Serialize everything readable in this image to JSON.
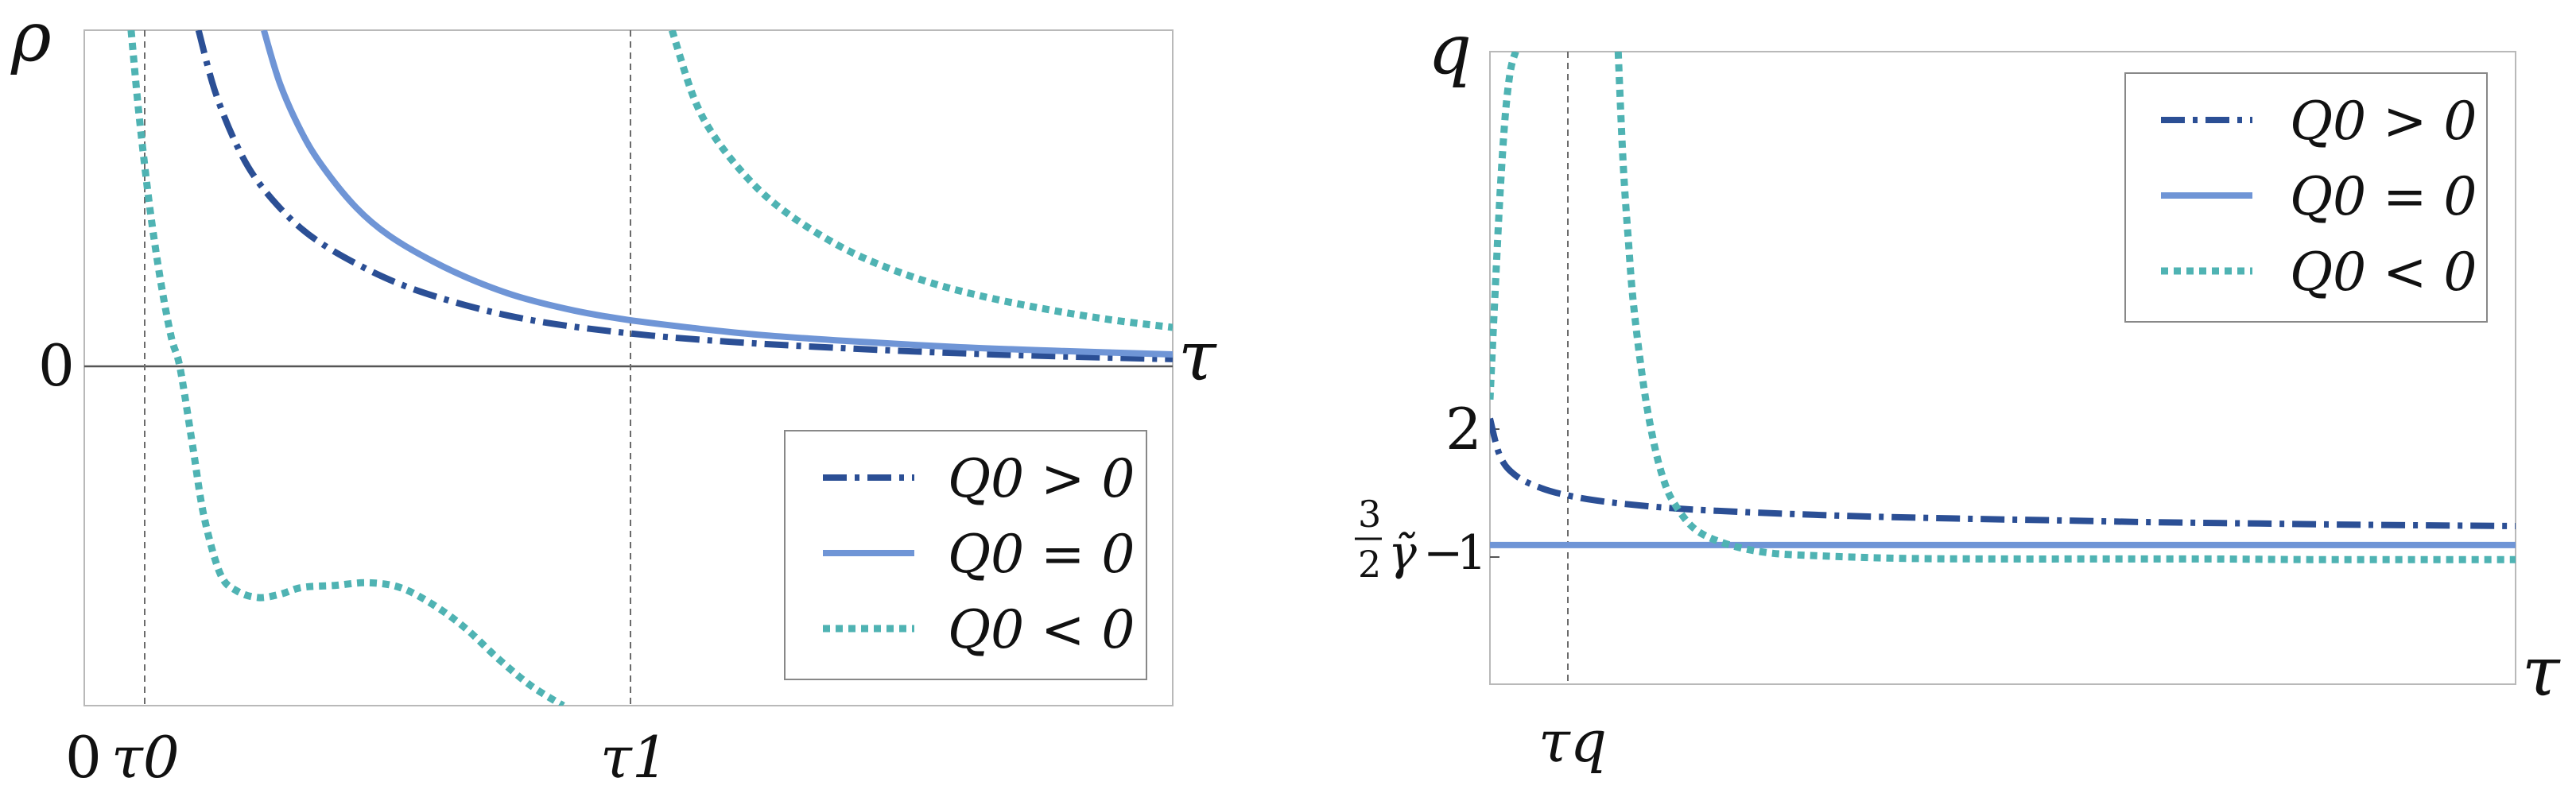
{
  "colors": {
    "dashdot": "#2b4f95",
    "solid": "#6f95d6",
    "dotted": "#4fb3b3",
    "frame": "#b9b9b9",
    "axis": "#555555",
    "guide": "#6b6b6b"
  },
  "chart_data": [
    {
      "type": "line",
      "title": "",
      "ylabel": "ρ",
      "xlabel": "τ",
      "ytick_labels": [
        "0"
      ],
      "xtick_labels": [
        "0",
        "τ0",
        "τ1"
      ],
      "xlim": [
        0,
        1
      ],
      "ylim": [
        -0.5,
        0.5
      ],
      "grid": false,
      "legend_placement": "bottom-right",
      "annotations": [
        "τ0",
        "τ1"
      ],
      "series": [
        {
          "name": "Q0 > 0",
          "style": "dashdot",
          "x": [
            0.105,
            0.12,
            0.14,
            0.16,
            0.19,
            0.22,
            0.26,
            0.3,
            0.35,
            0.4,
            0.45,
            0.52,
            0.6,
            0.7,
            0.8,
            0.9,
            1.0
          ],
          "y": [
            0.5,
            0.41,
            0.33,
            0.275,
            0.22,
            0.182,
            0.146,
            0.118,
            0.093,
            0.074,
            0.061,
            0.048,
            0.038,
            0.029,
            0.022,
            0.017,
            0.013
          ]
        },
        {
          "name": "Q0 = 0",
          "style": "solid",
          "x": [
            0.165,
            0.18,
            0.2,
            0.22,
            0.25,
            0.28,
            0.32,
            0.36,
            0.4,
            0.45,
            0.5,
            0.56,
            0.62,
            0.7,
            0.8,
            0.9,
            1.0
          ],
          "y": [
            0.5,
            0.42,
            0.348,
            0.296,
            0.237,
            0.196,
            0.158,
            0.128,
            0.105,
            0.085,
            0.071,
            0.059,
            0.049,
            0.04,
            0.031,
            0.025,
            0.02
          ]
        },
        {
          "name": "Q0 < 0",
          "style": "dotted",
          "x": [
            0.043,
            0.05,
            0.06,
            0.07,
            0.08,
            0.088,
            0.1,
            0.11,
            0.125,
            0.14,
            0.16,
            0.18,
            0.2,
            0.23,
            0.26,
            0.29,
            0.32,
            0.35,
            0.38,
            0.41,
            0.44
          ],
          "y": [
            0.5,
            0.38,
            0.24,
            0.13,
            0.045,
            0.0,
            -0.12,
            -0.22,
            -0.305,
            -0.33,
            -0.34,
            -0.335,
            -0.325,
            -0.322,
            -0.318,
            -0.325,
            -0.35,
            -0.385,
            -0.43,
            -0.47,
            -0.5
          ]
        },
        {
          "name": "Q0 < 0",
          "style": "dotted",
          "x": [
            0.54,
            0.56,
            0.58,
            0.61,
            0.64,
            0.68,
            0.72,
            0.77,
            0.82,
            0.88,
            0.94,
            1.0
          ],
          "y": [
            0.5,
            0.4,
            0.34,
            0.28,
            0.236,
            0.193,
            0.16,
            0.13,
            0.108,
            0.088,
            0.072,
            0.06
          ]
        }
      ]
    },
    {
      "type": "line",
      "title": "",
      "ylabel": "q",
      "xlabel": "τ",
      "ytick_labels": [
        "2",
        "3/2 γ̃ − 1"
      ],
      "xtick_labels": [
        "τq"
      ],
      "xlim": [
        0,
        1
      ],
      "ylim": [
        0,
        1
      ],
      "grid": false,
      "legend_placement": "top-right",
      "annotations": [
        "τq"
      ],
      "series": [
        {
          "name": "Q0 > 0",
          "style": "dashdot",
          "x": [
            0.0,
            0.01,
            0.025,
            0.05,
            0.08,
            0.12,
            0.18,
            0.25,
            0.35,
            0.45,
            0.55,
            0.65,
            0.75,
            0.85,
            1.0
          ],
          "y": [
            0.42,
            0.36,
            0.33,
            0.31,
            0.297,
            0.287,
            0.278,
            0.272,
            0.266,
            0.262,
            0.259,
            0.256,
            0.254,
            0.252,
            0.25
          ]
        },
        {
          "name": "Q0 = 0",
          "style": "solid",
          "x": [
            0.0,
            1.0
          ],
          "y": [
            0.22,
            0.22
          ]
        },
        {
          "name": "Q0 < 0",
          "style": "dotted",
          "x": [
            0.0,
            0.005,
            0.01,
            0.015,
            0.02,
            0.025
          ],
          "y": [
            0.45,
            0.62,
            0.78,
            0.9,
            0.97,
            1.0
          ]
        },
        {
          "name": "Q0 < 0",
          "style": "dotted",
          "x": [
            0.125,
            0.13,
            0.135,
            0.14,
            0.15,
            0.16,
            0.17,
            0.18,
            0.2,
            0.23,
            0.27,
            0.32,
            0.4,
            0.5,
            0.6,
            0.7,
            0.8,
            0.9,
            1.0
          ],
          "y": [
            1.0,
            0.82,
            0.7,
            0.6,
            0.47,
            0.38,
            0.32,
            0.285,
            0.245,
            0.222,
            0.208,
            0.203,
            0.199,
            0.198,
            0.198,
            0.198,
            0.197,
            0.197,
            0.197
          ]
        }
      ]
    }
  ]
}
